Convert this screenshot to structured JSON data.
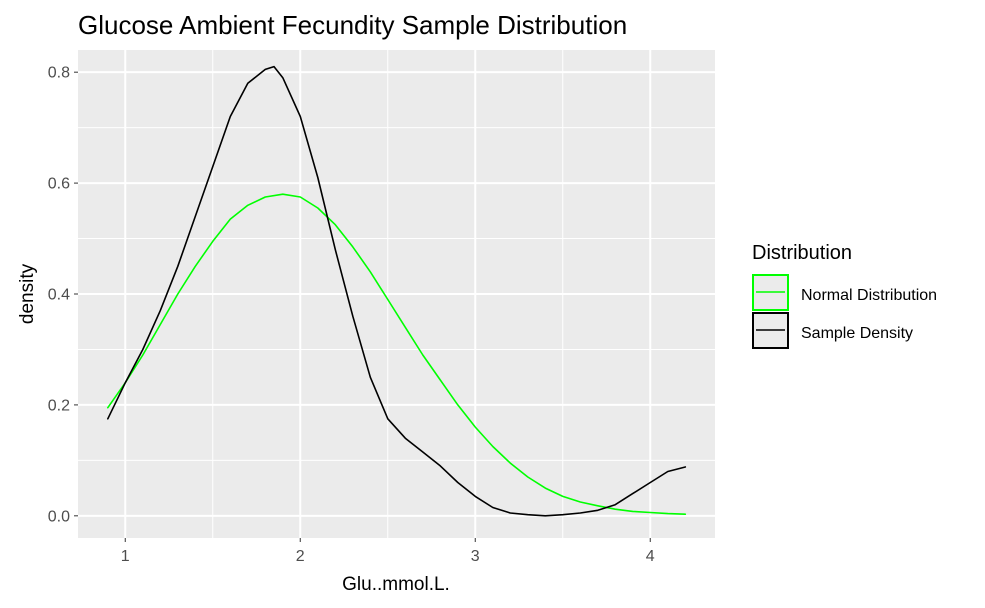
{
  "chart_data": {
    "type": "line",
    "title": "Glucose Ambient Fecundity Sample Distribution",
    "xlabel": "Glu..mmol.L.",
    "ylabel": "density",
    "xlim": [
      0.73,
      4.37
    ],
    "ylim": [
      -0.04,
      0.84
    ],
    "x_ticks": [
      1,
      2,
      3,
      4
    ],
    "x_tick_labels": [
      "1",
      "2",
      "3",
      "4"
    ],
    "y_ticks": [
      0.0,
      0.2,
      0.4,
      0.6,
      0.8
    ],
    "y_tick_labels": [
      "0.0",
      "0.2",
      "0.4",
      "0.6",
      "0.8"
    ],
    "grid": true,
    "legend": {
      "title": "Distribution",
      "placement": "right",
      "entries": [
        "Normal Distribution",
        "Sample Density"
      ]
    },
    "colors": {
      "panel_background": "#ebebeb",
      "grid": "#ffffff",
      "normal": "#00ff00",
      "sample": "#000000"
    },
    "series": [
      {
        "name": "Normal Distribution",
        "color": "#00ff00",
        "x": [
          0.9,
          1.0,
          1.1,
          1.2,
          1.3,
          1.4,
          1.5,
          1.6,
          1.7,
          1.8,
          1.9,
          2.0,
          2.1,
          2.2,
          2.3,
          2.4,
          2.5,
          2.6,
          2.7,
          2.8,
          2.9,
          3.0,
          3.1,
          3.2,
          3.3,
          3.4,
          3.5,
          3.6,
          3.7,
          3.8,
          3.9,
          4.0,
          4.1,
          4.2
        ],
        "y": [
          0.195,
          0.24,
          0.29,
          0.345,
          0.4,
          0.45,
          0.495,
          0.535,
          0.56,
          0.575,
          0.58,
          0.575,
          0.555,
          0.525,
          0.485,
          0.44,
          0.39,
          0.34,
          0.29,
          0.245,
          0.2,
          0.16,
          0.125,
          0.095,
          0.07,
          0.05,
          0.035,
          0.025,
          0.018,
          0.012,
          0.008,
          0.006,
          0.004,
          0.003
        ]
      },
      {
        "name": "Sample Density",
        "color": "#000000",
        "x": [
          0.9,
          1.0,
          1.1,
          1.2,
          1.3,
          1.4,
          1.5,
          1.6,
          1.7,
          1.8,
          1.85,
          1.9,
          2.0,
          2.1,
          2.2,
          2.3,
          2.4,
          2.5,
          2.6,
          2.7,
          2.8,
          2.9,
          3.0,
          3.1,
          3.2,
          3.3,
          3.4,
          3.5,
          3.6,
          3.7,
          3.8,
          3.9,
          4.0,
          4.1,
          4.2
        ],
        "y": [
          0.175,
          0.24,
          0.3,
          0.37,
          0.45,
          0.54,
          0.63,
          0.72,
          0.78,
          0.805,
          0.81,
          0.79,
          0.72,
          0.61,
          0.48,
          0.36,
          0.25,
          0.175,
          0.14,
          0.115,
          0.09,
          0.06,
          0.035,
          0.015,
          0.005,
          0.002,
          0.0,
          0.002,
          0.005,
          0.01,
          0.02,
          0.04,
          0.06,
          0.08,
          0.088
        ]
      }
    ]
  }
}
